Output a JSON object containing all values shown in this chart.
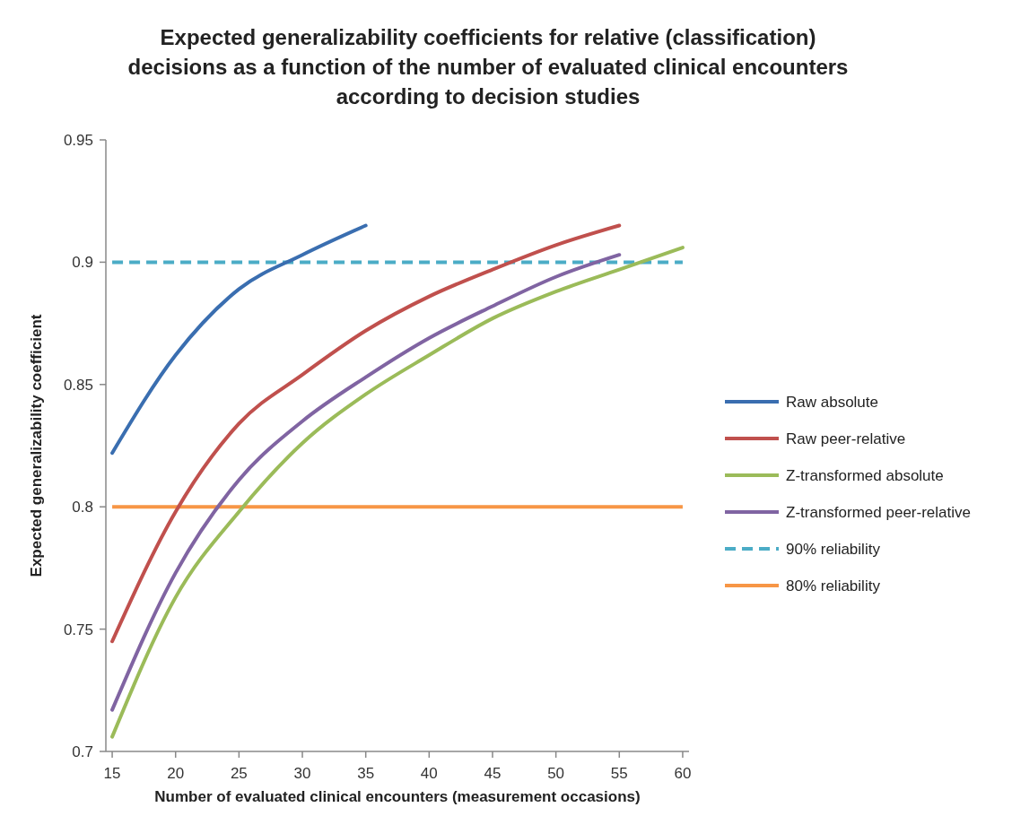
{
  "chart_data": {
    "type": "line",
    "title": "Expected generalizability coefficients for relative (classification) decisions as a function of the number of evaluated clinical encounters according to decision studies",
    "xlabel": "Number of evaluated clinical  encounters (measurement occasions)",
    "ylabel": "Expected generalizability coefficient",
    "xlim": [
      14.5,
      60.5
    ],
    "xticks": [
      15,
      20,
      25,
      30,
      35,
      40,
      45,
      50,
      55,
      60
    ],
    "ylim": [
      0.7,
      0.95
    ],
    "yticks": [
      0.7,
      0.75,
      0.8,
      0.85,
      0.9,
      0.95
    ],
    "grid": false,
    "legend": "right",
    "line_style": "solid",
    "marker": "none",
    "series": [
      {
        "name": "Raw absolute",
        "color": "#3a6eb0",
        "x": [
          15,
          20,
          25,
          30,
          35
        ],
        "values": [
          0.822,
          0.862,
          0.889,
          0.903,
          0.915
        ]
      },
      {
        "name": "Raw peer-relative",
        "color": "#c0504d",
        "x": [
          15,
          20,
          25,
          30,
          35,
          40,
          45,
          50,
          55
        ],
        "values": [
          0.745,
          0.798,
          0.834,
          0.854,
          0.872,
          0.886,
          0.897,
          0.907,
          0.915
        ]
      },
      {
        "name": "Z-transformed absolute",
        "color": "#9bbb59",
        "x": [
          15,
          20,
          25,
          30,
          35,
          40,
          45,
          50,
          55,
          60
        ],
        "values": [
          0.706,
          0.763,
          0.798,
          0.826,
          0.846,
          0.862,
          0.877,
          0.888,
          0.897,
          0.906
        ]
      },
      {
        "name": "Z-transformed peer-relative",
        "color": "#8064a2",
        "x": [
          15,
          20,
          25,
          30,
          35,
          40,
          45,
          50,
          55
        ],
        "values": [
          0.717,
          0.773,
          0.811,
          0.835,
          0.853,
          0.869,
          0.882,
          0.894,
          0.903
        ]
      }
    ],
    "ref_lines": [
      {
        "axis": "y",
        "value": 0.9,
        "label": "90% reliability",
        "color": "#4bacc6",
        "line_style": "dashed"
      },
      {
        "axis": "y",
        "value": 0.8,
        "label": "80% reliability",
        "color": "#f79646",
        "line_style": "solid"
      }
    ]
  }
}
